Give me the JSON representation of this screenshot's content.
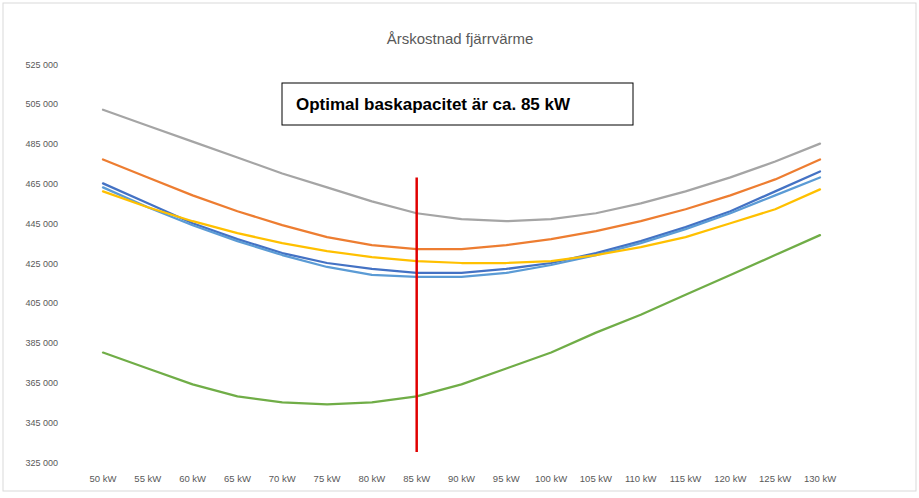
{
  "chart_data": {
    "type": "line",
    "title": "Årskostnad fjärrvärme",
    "annotations": [
      {
        "text": "Optimal baskapacitet är ca. 85 kW"
      }
    ],
    "reference_line": {
      "x": "85 kW",
      "y": [
        330000,
        468000
      ],
      "color": "#e00000"
    },
    "categories": [
      "50 kW",
      "55 kW",
      "60 kW",
      "65 kW",
      "70 kW",
      "75 kW",
      "80 kW",
      "85 kW",
      "90 kW",
      "95 kW",
      "100 kW",
      "105 kW",
      "110 kW",
      "115 kW",
      "120 kW",
      "125 kW",
      "130 kW"
    ],
    "series": [
      {
        "color": "#a5a5a5",
        "values": [
          502000,
          494000,
          486000,
          478000,
          470000,
          463000,
          456000,
          450000,
          447000,
          446000,
          447000,
          450000,
          455000,
          461000,
          468000,
          476000,
          485000
        ]
      },
      {
        "color": "#ed7d31",
        "values": [
          477000,
          468000,
          459000,
          451000,
          444000,
          438000,
          434000,
          432000,
          432000,
          434000,
          437000,
          441000,
          446000,
          452000,
          459000,
          467000,
          477000
        ]
      },
      {
        "color": "#4472c4",
        "values": [
          465000,
          455000,
          445000,
          437000,
          430000,
          425000,
          422000,
          420000,
          420000,
          422000,
          425000,
          430000,
          436000,
          443000,
          451000,
          461000,
          471000
        ]
      },
      {
        "color": "#5b9bd5",
        "values": [
          463000,
          453000,
          444000,
          436000,
          429000,
          423000,
          419000,
          418000,
          418000,
          420000,
          424000,
          429000,
          435000,
          442000,
          450000,
          459000,
          468000
        ]
      },
      {
        "color": "#ffc000",
        "values": [
          461000,
          453000,
          446000,
          440000,
          435000,
          431000,
          428000,
          426000,
          425000,
          425000,
          426000,
          429000,
          433000,
          438000,
          445000,
          452000,
          462000
        ]
      },
      {
        "color": "#70ad47",
        "values": [
          380000,
          372000,
          364000,
          358000,
          355000,
          354000,
          355000,
          358000,
          364000,
          372000,
          380000,
          390000,
          399000,
          409000,
          419000,
          429000,
          439000
        ]
      }
    ],
    "ylim": [
      325000,
      525000
    ],
    "yticks": [
      {
        "value": 325000,
        "label": "325 000"
      },
      {
        "value": 345000,
        "label": "345 000"
      },
      {
        "value": 365000,
        "label": "365 000"
      },
      {
        "value": 385000,
        "label": "385 000"
      },
      {
        "value": 405000,
        "label": "405 000"
      },
      {
        "value": 425000,
        "label": "425 000"
      },
      {
        "value": 445000,
        "label": "445 000"
      },
      {
        "value": 465000,
        "label": "465 000"
      },
      {
        "value": 485000,
        "label": "485 000"
      },
      {
        "value": 505000,
        "label": "505 000"
      },
      {
        "value": 525000,
        "label": "525 000"
      }
    ],
    "grid": false
  }
}
